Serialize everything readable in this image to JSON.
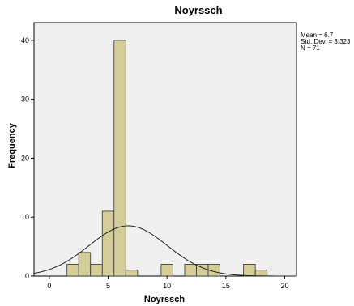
{
  "chart_data": {
    "type": "bar",
    "title": "Noyrssch",
    "xlabel": "Noyrssch",
    "ylabel": "Frequency",
    "xlim": [
      -1.3,
      21
    ],
    "ylim": [
      0,
      43
    ],
    "x_ticks": [
      0,
      5,
      10,
      15,
      20
    ],
    "y_ticks": [
      0,
      10,
      20,
      30,
      40
    ],
    "bin_width": 1,
    "bins": [
      {
        "start": 1.5,
        "end": 2.5,
        "count": 2
      },
      {
        "start": 2.5,
        "end": 3.5,
        "count": 4
      },
      {
        "start": 3.5,
        "end": 4.5,
        "count": 2
      },
      {
        "start": 4.5,
        "end": 5.5,
        "count": 11
      },
      {
        "start": 5.5,
        "end": 6.5,
        "count": 40
      },
      {
        "start": 6.5,
        "end": 7.5,
        "count": 1
      },
      {
        "start": 9.5,
        "end": 10.5,
        "count": 2
      },
      {
        "start": 11.5,
        "end": 12.5,
        "count": 2
      },
      {
        "start": 12.5,
        "end": 13.5,
        "count": 2
      },
      {
        "start": 13.5,
        "end": 14.5,
        "count": 2
      },
      {
        "start": 16.5,
        "end": 17.5,
        "count": 2
      },
      {
        "start": 17.5,
        "end": 18.5,
        "count": 1
      }
    ],
    "normal_curve": {
      "mean": 6.7,
      "sd": 3.323,
      "n": 71
    },
    "stats_text": [
      "Mean = 6.7",
      "Std. Dev. = 3.323",
      "N = 71"
    ]
  }
}
